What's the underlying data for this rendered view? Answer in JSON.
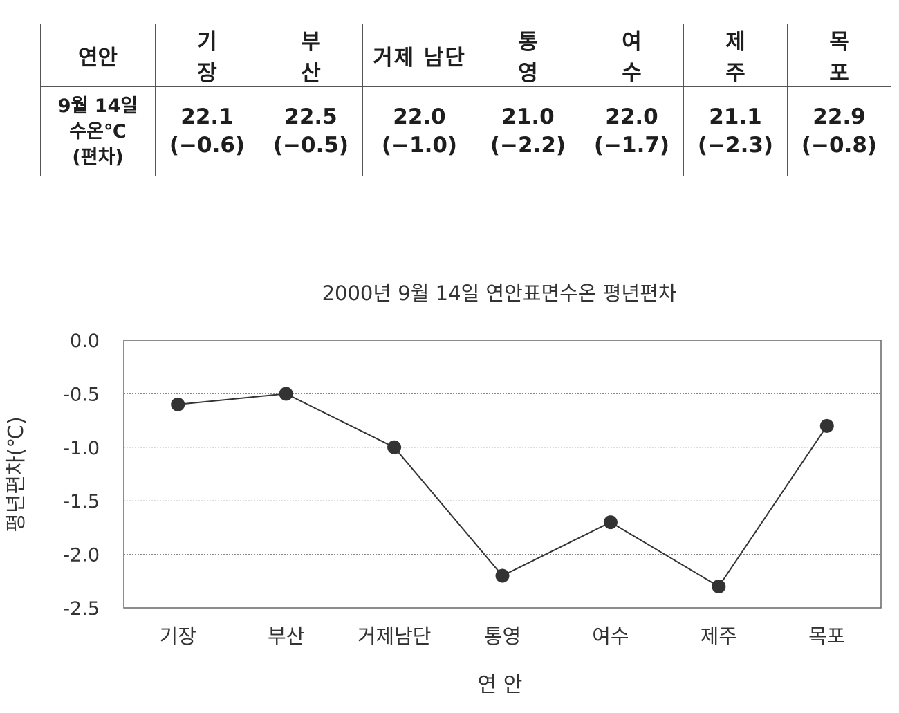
{
  "table": {
    "header_label": "연안",
    "stations": [
      "기 장",
      "부 산",
      "거제 남단",
      "통 영",
      "여 수",
      "제 주",
      "목 포"
    ],
    "row_label_lines": [
      "9월 14일",
      "수온℃",
      "(편차)"
    ],
    "temperatures": [
      "22.1",
      "22.5",
      "22.0",
      "21.0",
      "22.0",
      "21.1",
      "22.9"
    ],
    "deviations": [
      "(−0.6)",
      "(−0.5)",
      "(−1.0)",
      "(−2.2)",
      "(−1.7)",
      "(−2.3)",
      "(−0.8)"
    ]
  },
  "chart_data": {
    "type": "line",
    "title": "2000년 9월 14일 연안표면수온 평년편차",
    "xlabel": "연 안",
    "ylabel": "평년편차(℃)",
    "categories": [
      "기장",
      "부산",
      "거제남단",
      "통영",
      "여수",
      "제주",
      "목포"
    ],
    "series": [
      {
        "values": [
          -0.6,
          -0.5,
          -1.0,
          -2.2,
          -1.7,
          -2.3,
          -0.8
        ]
      }
    ],
    "ylim": [
      -2.5,
      0.0
    ],
    "yticks": [
      0.0,
      -0.5,
      -1.0,
      -1.5,
      -2.0,
      -2.5
    ],
    "ytick_labels": [
      "0.0",
      "-0.5",
      "-1.0",
      "-1.5",
      "-2.0",
      "-2.5"
    ],
    "grid": true,
    "line_color": "#333333",
    "marker_color": "#333333"
  }
}
